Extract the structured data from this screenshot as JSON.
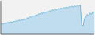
{
  "chart_data": {
    "type": "area",
    "values": [
      3.5,
      3.8,
      3.6,
      4.0,
      3.8,
      4.2,
      4.0,
      4.4,
      4.2,
      4.6,
      4.4,
      4.8,
      4.6,
      5.0,
      4.8,
      5.2,
      5.0,
      5.5,
      5.3,
      5.8,
      5.6,
      6.2,
      6.0,
      6.5,
      6.3,
      6.8,
      6.6,
      7.2,
      7.0,
      7.5,
      7.3,
      7.8,
      7.6,
      8.0,
      7.8,
      8.3,
      8.1,
      8.6,
      8.4,
      8.8,
      8.6,
      9.0,
      8.8,
      9.2,
      9.0,
      9.4,
      9.2,
      9.6,
      9.3,
      9.7,
      9.5,
      9.9,
      9.6,
      10.0,
      9.7,
      10.2,
      9.8,
      10.3,
      3.5,
      2.8,
      5.5,
      6.0,
      7.0,
      6.5,
      7.5,
      7.0,
      8.0,
      7.5
    ],
    "line_color": "#5bafd6",
    "fill_color": "#aad4ee",
    "background_color": "#f2f2f2",
    "xlim": [
      0,
      67
    ],
    "ylim": [
      0,
      11.8
    ],
    "tick_labels": false,
    "grid": false
  }
}
